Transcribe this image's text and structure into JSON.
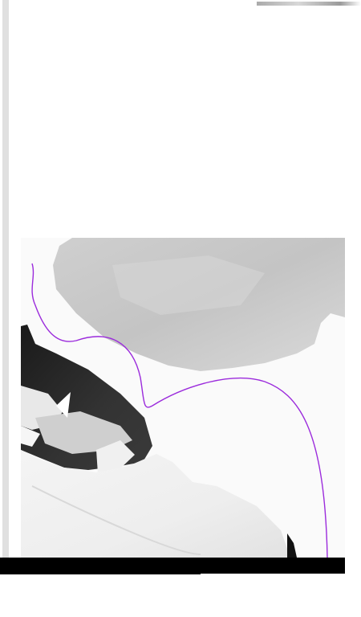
{
  "canvas": {
    "background": "#ffffff",
    "rail_color": "#e0e0e0",
    "curve_color": "#9b2bdc",
    "bottom_bar_color": "#000000"
  }
}
